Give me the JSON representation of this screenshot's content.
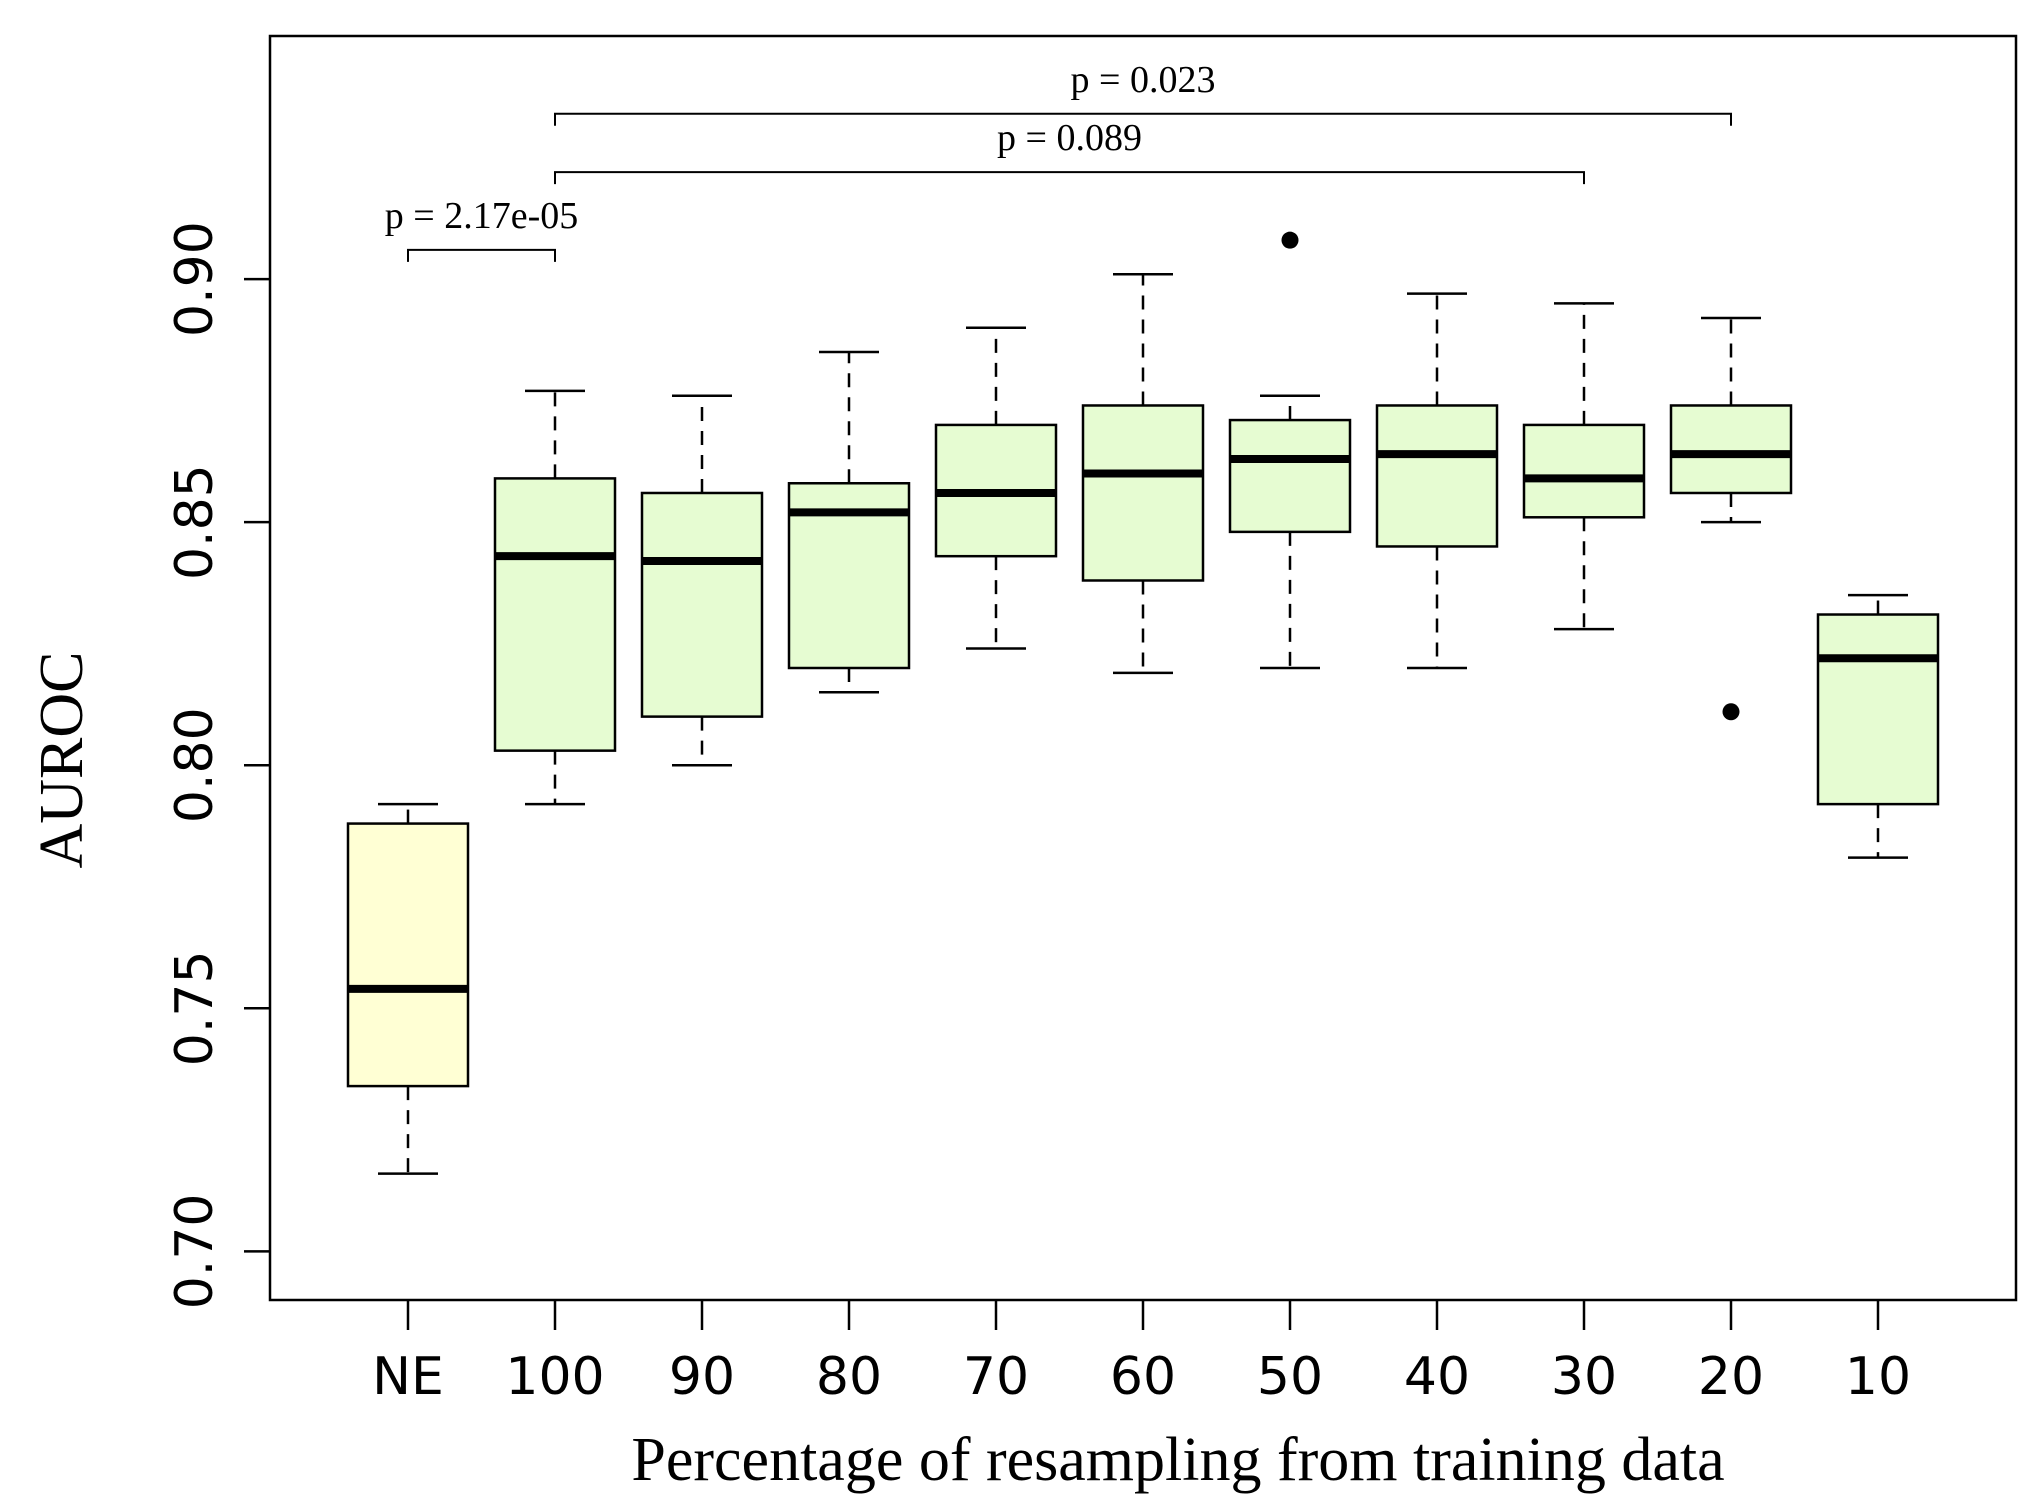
{
  "chart_data": {
    "type": "box",
    "xlabel": "Percentage of resampling from training data",
    "ylabel": "AUROC",
    "ylim": [
      0.69,
      0.95
    ],
    "yticks": [
      "0.70",
      "0.75",
      "0.80",
      "0.85",
      "0.90"
    ],
    "categories": [
      "NE",
      "100",
      "90",
      "80",
      "70",
      "60",
      "50",
      "40",
      "30",
      "20",
      "10"
    ],
    "boxes": [
      {
        "min": 0.716,
        "q1": 0.734,
        "median": 0.754,
        "q3": 0.788,
        "max": 0.792,
        "outliers": []
      },
      {
        "min": 0.792,
        "q1": 0.803,
        "median": 0.843,
        "q3": 0.859,
        "max": 0.877,
        "outliers": []
      },
      {
        "min": 0.8,
        "q1": 0.81,
        "median": 0.842,
        "q3": 0.856,
        "max": 0.876,
        "outliers": []
      },
      {
        "min": 0.815,
        "q1": 0.82,
        "median": 0.852,
        "q3": 0.858,
        "max": 0.885,
        "outliers": []
      },
      {
        "min": 0.824,
        "q1": 0.843,
        "median": 0.856,
        "q3": 0.87,
        "max": 0.89,
        "outliers": []
      },
      {
        "min": 0.819,
        "q1": 0.838,
        "median": 0.86,
        "q3": 0.874,
        "max": 0.901,
        "outliers": []
      },
      {
        "min": 0.82,
        "q1": 0.848,
        "median": 0.863,
        "q3": 0.871,
        "max": 0.876,
        "outliers": [
          0.908
        ]
      },
      {
        "min": 0.82,
        "q1": 0.845,
        "median": 0.864,
        "q3": 0.874,
        "max": 0.897,
        "outliers": []
      },
      {
        "min": 0.828,
        "q1": 0.851,
        "median": 0.859,
        "q3": 0.87,
        "max": 0.895,
        "outliers": []
      },
      {
        "min": 0.85,
        "q1": 0.856,
        "median": 0.864,
        "q3": 0.874,
        "max": 0.892,
        "outliers": [
          0.811
        ]
      },
      {
        "min": 0.781,
        "q1": 0.792,
        "median": 0.822,
        "q3": 0.831,
        "max": 0.835,
        "outliers": []
      }
    ],
    "colors": {
      "reference": "#ffffd4",
      "resampled": "#e6fcd2",
      "stroke": "#000000"
    },
    "annotations": [
      {
        "text": "p = 2.17e-05",
        "from": "NE",
        "to": "100",
        "y": 0.906
      },
      {
        "text": "p = 0.089",
        "from": "100",
        "to": "30",
        "y": 0.922
      },
      {
        "text": "p = 0.023",
        "from": "100",
        "to": "20",
        "y": 0.934
      }
    ]
  }
}
